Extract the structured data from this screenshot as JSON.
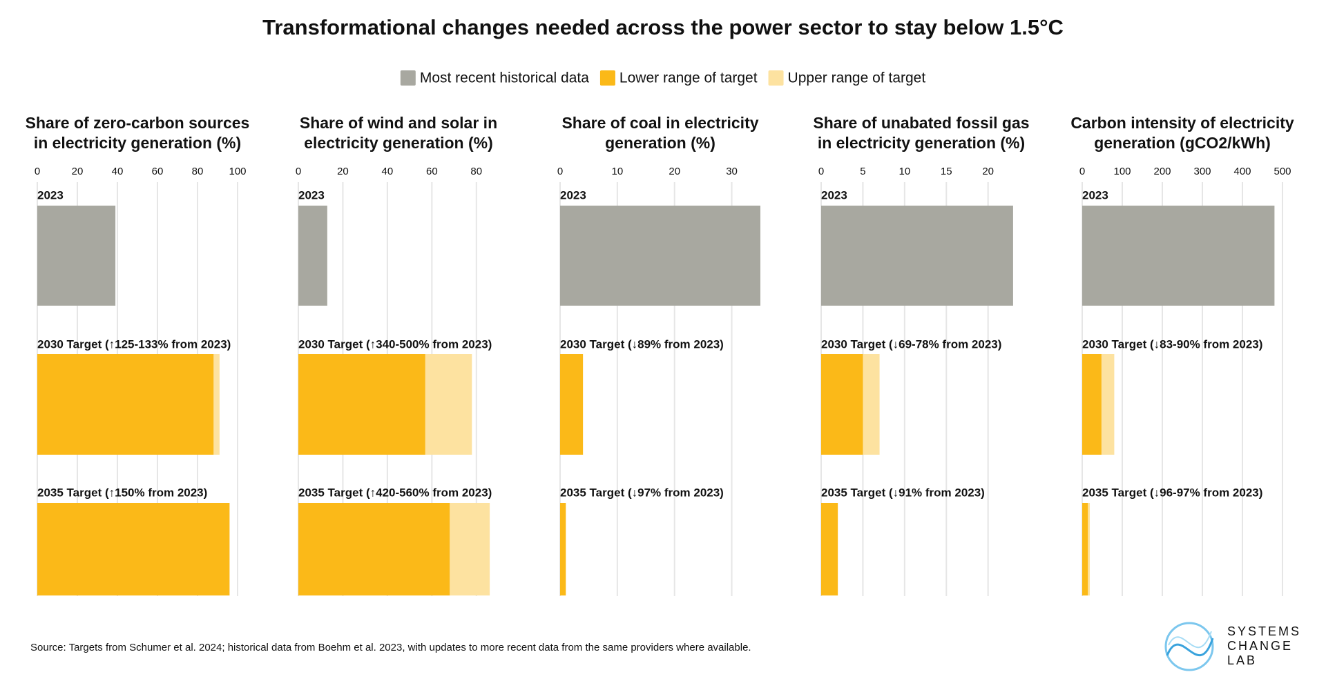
{
  "title": "Transformational changes needed across the power sector to stay below 1.5°C",
  "legend": [
    {
      "name": "Most recent historical data",
      "color": "#a8a8a0"
    },
    {
      "name": "Lower range of target",
      "color": "#fbb918"
    },
    {
      "name": "Upper range of target",
      "color": "#fde2a0"
    }
  ],
  "source": "Source: Targets from Schumer et al. 2024; historical data from Boehm et al. 2023, with updates to more recent data from the same providers where available.",
  "logo": [
    "SYSTEMS",
    "CHANGE",
    "LAB"
  ],
  "chart_data": [
    {
      "type": "bar",
      "title": [
        "Share of zero-carbon sources",
        "in electricity generation (%)"
      ],
      "categories": [
        "2023",
        "2030 Target (↑125-133% from 2023)",
        "2035 Target (↑150% from 2023)"
      ],
      "series": [
        {
          "values": [
            39,
            null,
            null
          ]
        },
        {
          "values": [
            null,
            88,
            96
          ]
        },
        {
          "values": [
            null,
            91,
            null
          ]
        }
      ],
      "xlim": [
        0,
        100
      ],
      "xticks": [
        0,
        20,
        40,
        60,
        80,
        100
      ],
      "grid": true
    },
    {
      "type": "bar",
      "title": [
        "Share of wind and solar in",
        "electricity generation (%)"
      ],
      "categories": [
        "2023",
        "2030 Target (↑340-500% from 2023)",
        "2035 Target (↑420-560% from 2023)"
      ],
      "series": [
        {
          "values": [
            13,
            null,
            null
          ]
        },
        {
          "values": [
            null,
            57,
            68
          ]
        },
        {
          "values": [
            null,
            78,
            86
          ]
        }
      ],
      "xlim": [
        0,
        90
      ],
      "xticks": [
        0,
        20,
        40,
        60,
        80
      ],
      "grid": true
    },
    {
      "type": "bar",
      "title": [
        "Share of coal in electricity",
        "generation (%)"
      ],
      "categories": [
        "2023",
        "2030 Target (↓89% from 2023)",
        "2035 Target (↓97% from 2023)"
      ],
      "series": [
        {
          "values": [
            35,
            null,
            null
          ]
        },
        {
          "values": [
            null,
            4,
            1
          ]
        },
        {
          "values": [
            null,
            null,
            null
          ]
        }
      ],
      "xlim": [
        0,
        35
      ],
      "xticks": [
        0,
        10,
        20,
        30
      ],
      "grid": true
    },
    {
      "type": "bar",
      "title": [
        "Share of unabated fossil gas",
        "in electricity generation (%)"
      ],
      "categories": [
        "2023",
        "2030 Target (↓69-78% from 2023)",
        "2035 Target (↓91% from 2023)"
      ],
      "series": [
        {
          "values": [
            23,
            null,
            null
          ]
        },
        {
          "values": [
            null,
            5,
            2
          ]
        },
        {
          "values": [
            null,
            7,
            null
          ]
        }
      ],
      "xlim": [
        0,
        24
      ],
      "xticks": [
        0,
        5,
        10,
        15,
        20
      ],
      "grid": true
    },
    {
      "type": "bar",
      "title": [
        "Carbon intensity of electricity",
        "generation (gCO2/kWh)"
      ],
      "categories": [
        "2023",
        "2030 Target (↓83-90% from 2023)",
        "2035 Target (↓96-97% from 2023)"
      ],
      "series": [
        {
          "values": [
            480,
            null,
            null
          ]
        },
        {
          "values": [
            null,
            48,
            14
          ]
        },
        {
          "values": [
            null,
            80,
            19
          ]
        }
      ],
      "xlim": [
        0,
        500
      ],
      "xticks": [
        0,
        100,
        200,
        300,
        400,
        500
      ],
      "grid": true
    }
  ]
}
